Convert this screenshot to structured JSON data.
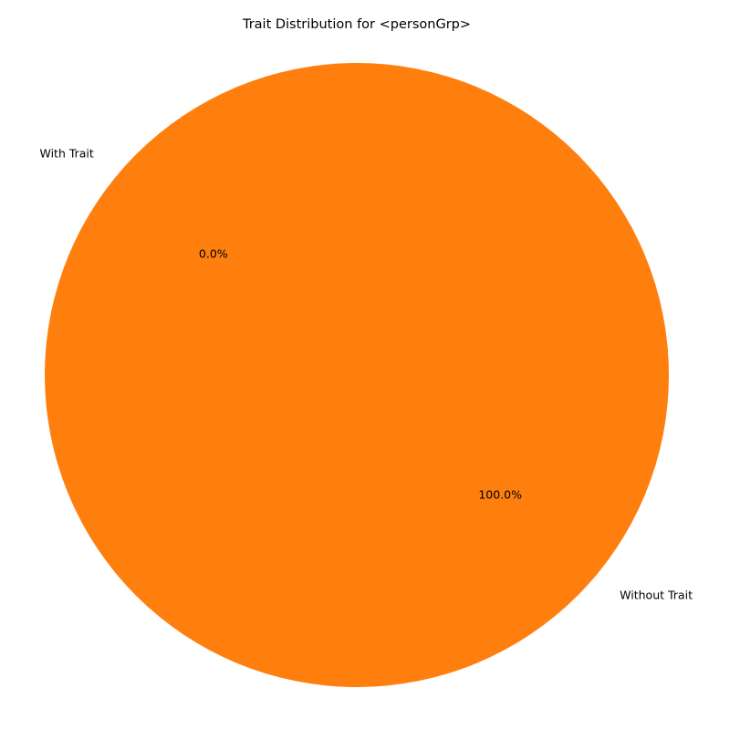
{
  "chart_data": {
    "type": "pie",
    "title": "Trait Distribution for <personGrp>",
    "start_angle": 140,
    "direction": "counterclockwise",
    "slices": [
      {
        "label": "With Trait",
        "value": 0,
        "percent_label": "0.0%",
        "color": "#1f77b4"
      },
      {
        "label": "Without Trait",
        "value": 100,
        "percent_label": "100.0%",
        "color": "#ff7f0e"
      }
    ]
  }
}
